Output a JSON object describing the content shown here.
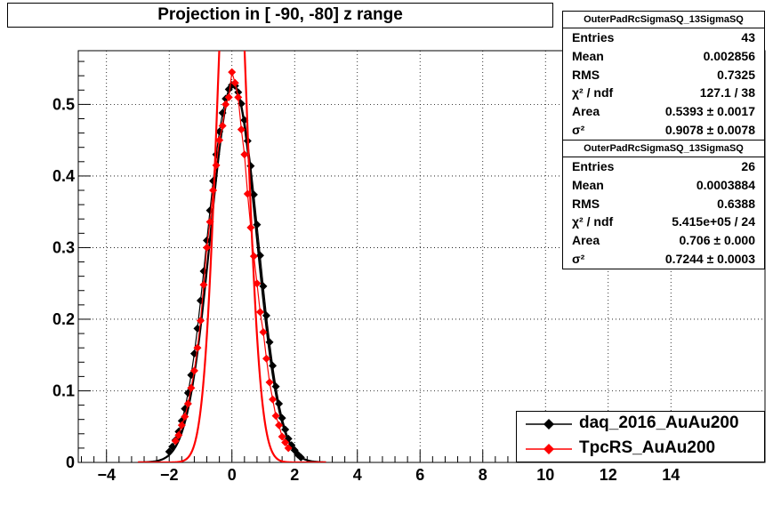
{
  "chart_data": {
    "type": "scatter",
    "title": "Projection in [ -90, -80] z range",
    "xlim": [
      -4.9,
      17
    ],
    "ylim": [
      0,
      0.575
    ],
    "x_ticks": [
      -4,
      -2,
      0,
      2,
      4,
      6,
      8,
      10,
      12,
      14
    ],
    "x_tick_labels": [
      "−4",
      "−2",
      "0",
      "2",
      "4",
      "6",
      "8",
      "10",
      "12",
      "14"
    ],
    "y_ticks": [
      0,
      0.1,
      0.2,
      0.3,
      0.4,
      0.5
    ],
    "y_tick_labels": [
      "0",
      "0.1",
      "0.2",
      "0.3",
      "0.4",
      "0.5"
    ],
    "grid": true,
    "legend_position": "bottom-right",
    "series": [
      {
        "name": "daq_2016_AuAu200",
        "color": "#000000",
        "x": [
          -2.0,
          -1.9,
          -1.8,
          -1.7,
          -1.6,
          -1.5,
          -1.4,
          -1.3,
          -1.2,
          -1.1,
          -1.0,
          -0.9,
          -0.8,
          -0.7,
          -0.6,
          -0.5,
          -0.4,
          -0.3,
          -0.2,
          -0.1,
          0.0,
          0.1,
          0.2,
          0.3,
          0.4,
          0.5,
          0.6,
          0.7,
          0.8,
          0.9,
          1.0,
          1.1,
          1.2,
          1.3,
          1.4,
          1.5,
          1.6,
          1.7,
          1.8,
          1.9,
          2.0,
          2.1,
          2.2
        ],
        "y": [
          0.015,
          0.022,
          0.031,
          0.043,
          0.058,
          0.075,
          0.097,
          0.122,
          0.152,
          0.187,
          0.226,
          0.267,
          0.31,
          0.352,
          0.393,
          0.43,
          0.462,
          0.488,
          0.508,
          0.521,
          0.527,
          0.526,
          0.517,
          0.501,
          0.478,
          0.449,
          0.414,
          0.374,
          0.332,
          0.289,
          0.246,
          0.205,
          0.168,
          0.135,
          0.106,
          0.082,
          0.062,
          0.046,
          0.033,
          0.024,
          0.017,
          0.011,
          0.007
        ],
        "fit_sigma": 0.7325,
        "fit_amplitude": 0.527,
        "fit_mean": 0.05,
        "stats": {
          "header": "OuterPadRcSigmaSQ_13SigmaSQ",
          "entries": "43",
          "mean": "0.002856",
          "rms": "0.7325",
          "chi2_ndf": "127.1 / 38",
          "area": "0.5393 ± 0.0017",
          "sigma": "0.9078 ± 0.0078"
        }
      },
      {
        "name": "TpcRS_AuAu200",
        "color": "#ff0000",
        "x": [
          -1.8,
          -1.7,
          -1.6,
          -1.5,
          -1.4,
          -1.3,
          -1.2,
          -1.1,
          -1.0,
          -0.9,
          -0.8,
          -0.7,
          -0.6,
          -0.5,
          -0.4,
          -0.3,
          -0.2,
          -0.1,
          0.0,
          0.1,
          0.2,
          0.3,
          0.4,
          0.5,
          0.6,
          0.7,
          0.8,
          0.9,
          1.0,
          1.1,
          1.2,
          1.3,
          1.4,
          1.5,
          1.6,
          1.7,
          1.8
        ],
        "y": [
          0.03,
          0.038,
          0.052,
          0.064,
          0.082,
          0.104,
          0.128,
          0.16,
          0.198,
          0.248,
          0.3,
          0.336,
          0.38,
          0.415,
          0.45,
          0.47,
          0.5,
          0.51,
          0.545,
          0.53,
          0.51,
          0.465,
          0.43,
          0.375,
          0.328,
          0.288,
          0.25,
          0.21,
          0.182,
          0.145,
          0.112,
          0.088,
          0.065,
          0.052,
          0.036,
          0.028,
          0.02
        ],
        "fit_sigma": 0.45,
        "fit_amplitude": 0.86,
        "fit_mean": 0.0,
        "stats": {
          "header": "OuterPadRcSigmaSQ_13SigmaSQ",
          "entries": "26",
          "mean": "0.0003884",
          "rms": "0.6388",
          "chi2_ndf": "5.415e+05 / 24",
          "area": "0.706 ± 0.000",
          "sigma": "0.7244 ± 0.0003"
        }
      }
    ]
  },
  "stats_labels": {
    "entries": "Entries",
    "mean": "Mean",
    "rms": "RMS",
    "chi2_ndf": "χ² / ndf",
    "area": "Area",
    "sigma": "σ²"
  }
}
